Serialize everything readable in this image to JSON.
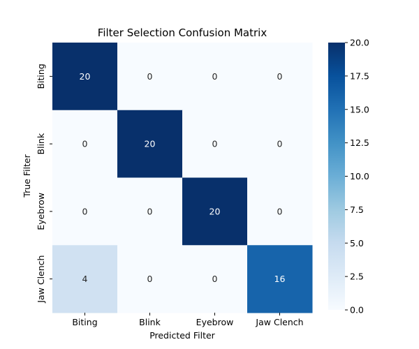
{
  "chart_data": {
    "type": "heatmap",
    "title": "Filter Selection Confusion Matrix",
    "xlabel": "Predicted Filter",
    "ylabel": "True Filter",
    "x_categories": [
      "Biting",
      "Blink",
      "Eyebrow",
      "Jaw Clench"
    ],
    "y_categories": [
      "Biting",
      "Blink",
      "Eyebrow",
      "Jaw Clench"
    ],
    "values": [
      [
        20,
        0,
        0,
        0
      ],
      [
        0,
        20,
        0,
        0
      ],
      [
        0,
        0,
        20,
        0
      ],
      [
        4,
        0,
        0,
        16
      ]
    ],
    "colorbar": {
      "range": [
        0,
        20
      ],
      "ticks": [
        "0.0",
        "2.5",
        "5.0",
        "7.5",
        "10.0",
        "12.5",
        "15.0",
        "17.5",
        "20.0"
      ],
      "colormap": "Blues",
      "low_color": "#f7fbff",
      "high_color": "#08306b"
    },
    "annotations": "cell counts shown in each cell",
    "grid": false
  }
}
